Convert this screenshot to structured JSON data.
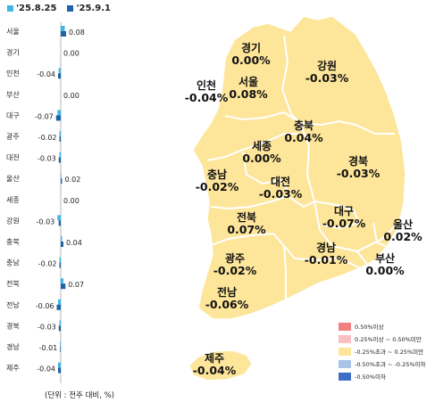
{
  "chart_data": {
    "type": "bar",
    "orientation": "horizontal",
    "unit": "(단위 : 전주 대비, %)",
    "categories": [
      "서울",
      "경기",
      "인천",
      "부산",
      "대구",
      "광주",
      "대전",
      "울산",
      "세종",
      "강원",
      "충북",
      "충남",
      "전북",
      "전남",
      "경북",
      "경남",
      "제주"
    ],
    "series": [
      {
        "name": "'25.8.25",
        "color": "#3fb6e8",
        "values": [
          0.06,
          0.0,
          -0.03,
          0.0,
          -0.05,
          -0.02,
          -0.02,
          0.01,
          0.0,
          -0.05,
          0.02,
          -0.02,
          0.04,
          -0.04,
          -0.02,
          -0.01,
          -0.04
        ]
      },
      {
        "name": "'25.9.1",
        "color": "#1f62a8",
        "values": [
          0.08,
          0.0,
          -0.04,
          0.0,
          -0.07,
          -0.02,
          -0.03,
          0.02,
          0.0,
          -0.03,
          0.04,
          -0.02,
          0.07,
          -0.06,
          -0.03,
          -0.01,
          -0.04
        ]
      }
    ],
    "value_labels": [
      "0.08",
      "0.00",
      "-0.04",
      "0.00",
      "-0.07",
      "-0.02",
      "-0.03",
      "0.02",
      "0.00",
      "-0.03",
      "0.04",
      "-0.02",
      "0.07",
      "-0.06",
      "-0.03",
      "-0.01",
      "-0.04"
    ]
  },
  "map": {
    "regions": [
      {
        "name": "경기",
        "value": "0.00%"
      },
      {
        "name": "강원",
        "value": "-0.03%"
      },
      {
        "name": "인천",
        "value": "-0.04%"
      },
      {
        "name": "서울",
        "value": "0.08%"
      },
      {
        "name": "충북",
        "value": "0.04%"
      },
      {
        "name": "세종",
        "value": "0.00%"
      },
      {
        "name": "경북",
        "value": "-0.03%"
      },
      {
        "name": "충남",
        "value": "-0.02%"
      },
      {
        "name": "대전",
        "value": "-0.03%"
      },
      {
        "name": "대구",
        "value": "-0.07%"
      },
      {
        "name": "전북",
        "value": "0.07%"
      },
      {
        "name": "울산",
        "value": "0.02%"
      },
      {
        "name": "광주",
        "value": "-0.02%"
      },
      {
        "name": "경남",
        "value": "-0.01%"
      },
      {
        "name": "부산",
        "value": "0.00%"
      },
      {
        "name": "전남",
        "value": "-0.06%"
      },
      {
        "name": "제주",
        "value": "-0.04%"
      }
    ],
    "fill_color": "#fde59a",
    "legend": [
      {
        "label": "0.50%이상",
        "color": "#f08080"
      },
      {
        "label": "0.25%이상 ~ 0.50%미만",
        "color": "#f9c0c4"
      },
      {
        "label": "-0.25%초과 ~ 0.25%미만",
        "color": "#fde59a"
      },
      {
        "label": "-0.50%초과 ~ -0.25%이하",
        "color": "#a9c4e6"
      },
      {
        "label": "-0.50%이하",
        "color": "#3f6fc4"
      }
    ]
  }
}
